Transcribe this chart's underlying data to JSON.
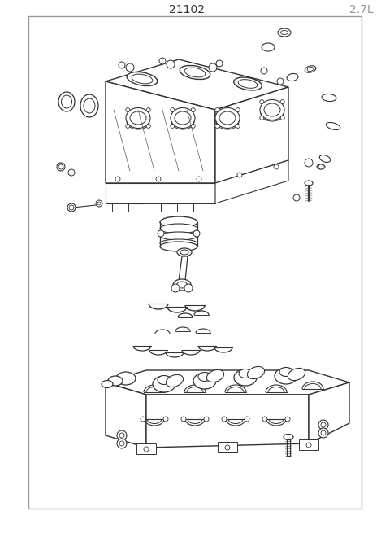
{
  "title_part_number": "21102",
  "title_engine": "2.7L",
  "bg_color": "#ffffff",
  "border_color": "#999999",
  "line_color": "#333333",
  "light_line_color": "#999999",
  "fig_width": 4.8,
  "fig_height": 6.55,
  "dpi": 100
}
